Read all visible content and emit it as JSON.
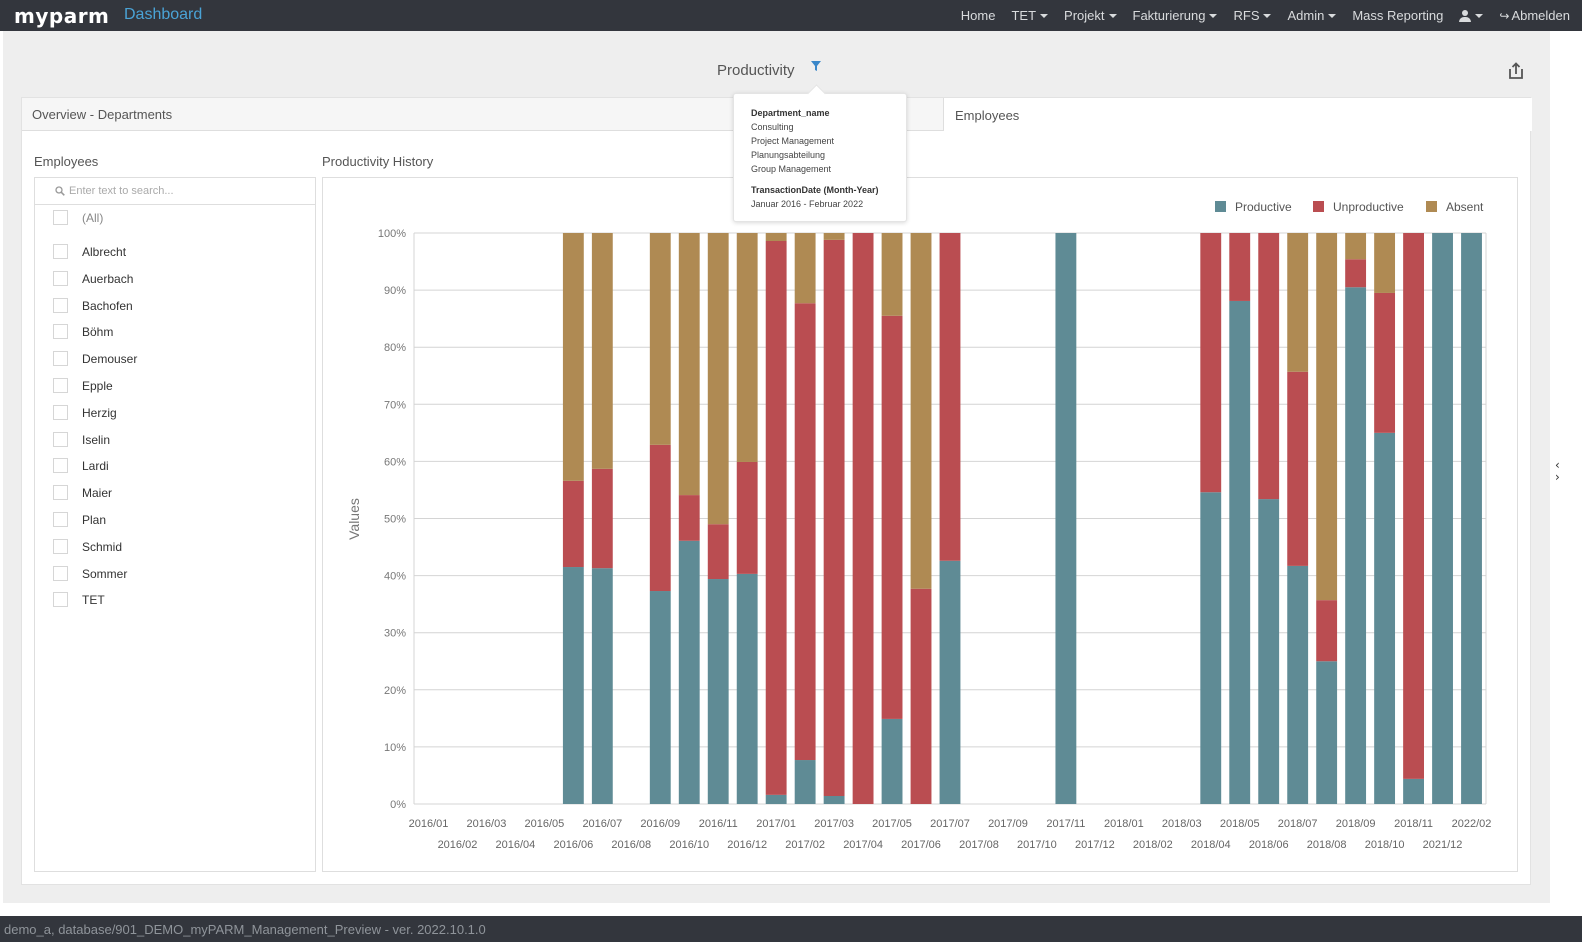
{
  "app": {
    "logo": "myparm",
    "title": "Dashboard"
  },
  "nav": {
    "items": [
      {
        "label": "Home",
        "dropdown": false
      },
      {
        "label": "TET",
        "dropdown": true
      },
      {
        "label": "Projekt",
        "dropdown": true
      },
      {
        "label": "Fakturierung",
        "dropdown": true
      },
      {
        "label": "RFS",
        "dropdown": true
      },
      {
        "label": "Admin",
        "dropdown": true
      },
      {
        "label": "Mass Reporting",
        "dropdown": false
      }
    ],
    "user_icon": "user-icon",
    "logout_label": "Abmelden",
    "logout_icon": "sign-out-icon"
  },
  "dashboard": {
    "title": "Productivity",
    "filter_icon": "filter-icon",
    "share_icon": "export-icon"
  },
  "filter_tooltip": {
    "sections": [
      {
        "heading": "Department_name",
        "values": [
          "Consulting",
          "Project Management",
          "Planungsabteilung",
          "Group Management"
        ]
      },
      {
        "heading": "TransactionDate (Month-Year)",
        "values": [
          "Januar 2016 - Februar 2022"
        ]
      }
    ]
  },
  "tabs": {
    "left": "Overview - Departments",
    "right": "Employees"
  },
  "employees_panel": {
    "label": "Employees",
    "search_placeholder": "Enter text to search...",
    "all_label": "(All)",
    "items": [
      "Albrecht",
      "Auerbach",
      "Bachofen",
      "Böhm",
      "Demouser",
      "Epple",
      "Herzig",
      "Iselin",
      "Lardi",
      "Maier",
      "Plan",
      "Schmid",
      "Sommer",
      "TET"
    ]
  },
  "chart_panel": {
    "label": "Productivity History"
  },
  "chart_data": {
    "type": "bar",
    "stacked": true,
    "normalized": true,
    "title": "Productivity History",
    "xlabel": "",
    "ylabel": "Values",
    "ylim": [
      0,
      100
    ],
    "yticks": [
      "0%",
      "10%",
      "20%",
      "30%",
      "40%",
      "50%",
      "60%",
      "70%",
      "80%",
      "90%",
      "100%"
    ],
    "grid": true,
    "legend_position": "top-right",
    "colors": {
      "Productive": "#5f8b95",
      "Unproductive": "#ba4d51",
      "Absent": "#af8a53"
    },
    "categories": [
      "2016/01",
      "2016/02",
      "2016/03",
      "2016/04",
      "2016/05",
      "2016/06",
      "2016/07",
      "2016/08",
      "2016/09",
      "2016/10",
      "2016/11",
      "2016/12",
      "2017/01",
      "2017/02",
      "2017/03",
      "2017/04",
      "2017/05",
      "2017/06",
      "2017/07",
      "2017/08",
      "2017/09",
      "2017/10",
      "2017/11",
      "2017/12",
      "2018/01",
      "2018/02",
      "2018/03",
      "2018/04",
      "2018/05",
      "2018/06",
      "2018/07",
      "2018/08",
      "2018/09",
      "2018/10",
      "2018/11",
      "2021/12",
      "2022/02"
    ],
    "series": [
      {
        "name": "Productive",
        "values": [
          0,
          0,
          0,
          0,
          0,
          41.5,
          41.3,
          0,
          37.3,
          46.1,
          39.4,
          40.3,
          1.6,
          7.7,
          1.4,
          0,
          14.9,
          0,
          42.6,
          0,
          0,
          0,
          100,
          0,
          0,
          0,
          0,
          54.6,
          88.1,
          53.4,
          41.7,
          25.0,
          90.5,
          65.0,
          4.4,
          100,
          100
        ]
      },
      {
        "name": "Unproductive",
        "values": [
          0,
          0,
          0,
          0,
          0,
          15.1,
          17.4,
          0,
          25.6,
          8.0,
          9.6,
          19.6,
          97.0,
          80.0,
          97.4,
          100,
          70.6,
          37.7,
          57.4,
          0,
          0,
          0,
          0,
          0,
          0,
          0,
          0,
          45.4,
          11.9,
          46.6,
          34.0,
          10.7,
          4.9,
          24.5,
          95.6,
          0,
          0
        ]
      },
      {
        "name": "Absent",
        "values": [
          0,
          0,
          0,
          0,
          0,
          43.4,
          41.3,
          0,
          37.1,
          45.9,
          51.0,
          40.1,
          1.4,
          12.3,
          1.2,
          0,
          14.5,
          62.3,
          0,
          0,
          0,
          0,
          0,
          0,
          0,
          0,
          0,
          0,
          0,
          0,
          24.3,
          64.3,
          4.6,
          10.5,
          0,
          0,
          0
        ]
      }
    ]
  },
  "footer": {
    "text": "demo_a, database/901_DEMO_myPARM_Management_Preview - ver. 2022.10.1.0"
  }
}
